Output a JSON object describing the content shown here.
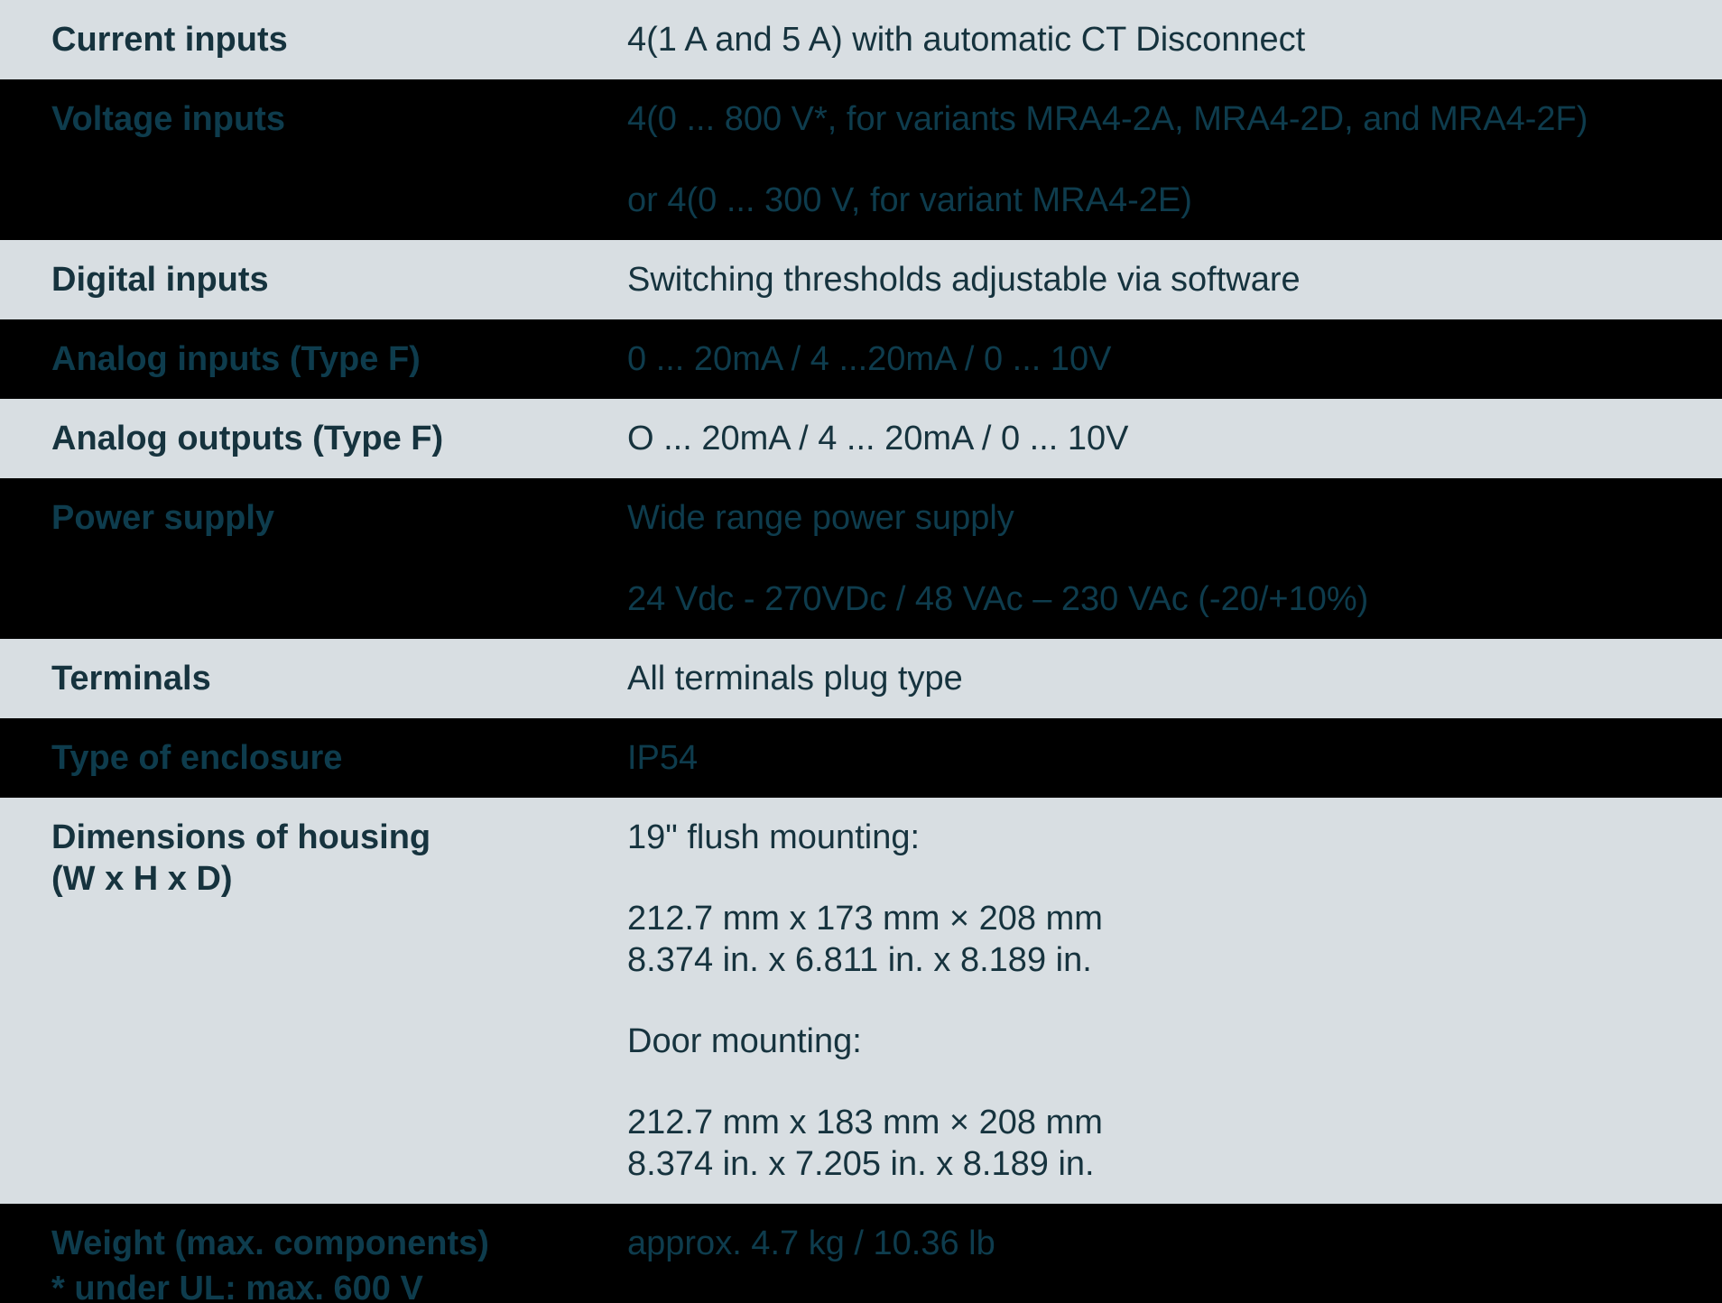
{
  "colors": {
    "light_row_bg": "#d8dee2",
    "dark_row_bg": "#000000",
    "text_on_light": "#16333e",
    "text_on_dark": "#0e3c4d"
  },
  "table": {
    "rows": [
      {
        "label": "Current inputs",
        "paragraphs": [
          [
            "4(1 A and 5 A) with automatic CT Disconnect"
          ]
        ]
      },
      {
        "label": "Voltage inputs",
        "paragraphs": [
          [
            "4(0 ... 800 V*, for variants MRA4-2A, MRA4-2D, and MRA4-2F)"
          ],
          [
            "or 4(0 ... 300 V, for variant MRA4-2E)"
          ]
        ]
      },
      {
        "label": "Digital inputs",
        "paragraphs": [
          [
            "Switching thresholds adjustable via software"
          ]
        ]
      },
      {
        "label": "Analog inputs (Type F)",
        "paragraphs": [
          [
            "0 ... 20mA / 4 ...20mA / 0 ... 10V"
          ]
        ]
      },
      {
        "label": "Analog outputs (Type F)",
        "paragraphs": [
          [
            "O ... 20mA / 4 ... 20mA / 0 ... 10V"
          ]
        ]
      },
      {
        "label": "Power supply",
        "paragraphs": [
          [
            "Wide range power supply"
          ],
          [
            "24 Vdc - 270VDc / 48 VAc – 230 VAc (-20/+10%)"
          ]
        ]
      },
      {
        "label": "Terminals",
        "paragraphs": [
          [
            "All terminals plug type"
          ]
        ]
      },
      {
        "label": "Type of enclosure",
        "paragraphs": [
          [
            "IP54"
          ]
        ]
      },
      {
        "label": "Dimensions of housing\n(W x H x D)",
        "paragraphs": [
          [
            "19\" flush mounting:"
          ],
          [
            "212.7 mm x 173 mm × 208 mm",
            "8.374 in. x 6.811 in. x 8.189 in."
          ],
          [
            "Door mounting:"
          ],
          [
            "212.7 mm x 183 mm × 208 mm",
            "8.374 in. x 7.205 in. x 8.189 in."
          ]
        ]
      },
      {
        "label": "Weight (max. components)",
        "footnote": "* under UL: max. 600 V",
        "paragraphs": [
          [
            "approx. 4.7 kg / 10.36 lb"
          ]
        ]
      }
    ]
  }
}
